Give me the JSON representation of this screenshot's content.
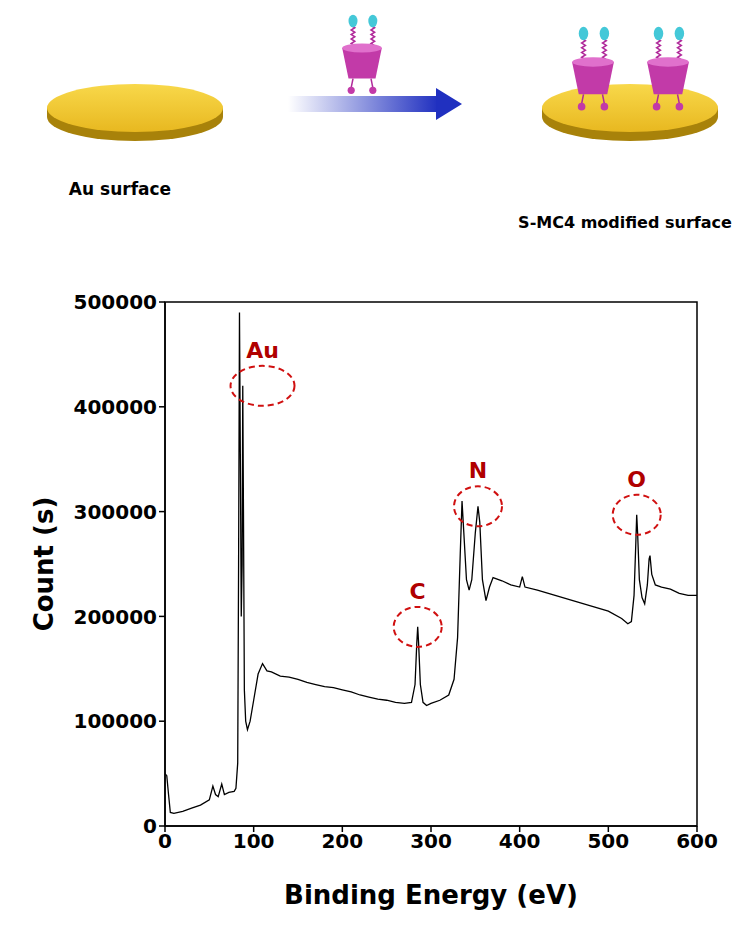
{
  "diagram": {
    "left_label": "Au surface",
    "right_label": "S-MC4 modified surface"
  },
  "chart_data": {
    "type": "line",
    "x_label": "Binding Energy (eV)",
    "y_label": "Count (s)",
    "xlim": [
      0,
      600
    ],
    "xticks": [
      0,
      100,
      200,
      300,
      400,
      500,
      600
    ],
    "ylim": [
      0,
      500000
    ],
    "yticks": [
      0,
      100000,
      200000,
      300000,
      400000,
      500000
    ],
    "grid": false,
    "color": "#000000",
    "x": [
      0,
      2,
      4,
      6,
      10,
      20,
      30,
      40,
      50,
      54,
      57,
      60,
      64,
      67,
      72,
      78,
      80,
      82,
      83,
      84,
      85,
      86,
      87,
      87.7,
      88.5,
      89.5,
      91,
      93,
      96,
      100,
      105,
      110,
      115,
      120,
      130,
      140,
      150,
      160,
      170,
      180,
      190,
      200,
      210,
      220,
      230,
      240,
      250,
      260,
      270,
      278,
      282,
      284,
      285,
      286,
      288,
      291,
      295,
      300,
      310,
      320,
      326,
      330,
      333,
      335,
      337,
      340,
      343,
      346,
      350,
      353,
      355,
      358,
      362,
      366,
      370,
      380,
      390,
      400,
      403,
      406,
      420,
      440,
      460,
      480,
      500,
      515,
      522,
      526,
      529,
      531,
      532,
      533,
      535,
      538,
      541,
      544,
      546,
      547,
      549,
      553,
      560,
      570,
      580,
      590,
      600
    ],
    "values": [
      50000,
      48000,
      30000,
      13000,
      12000,
      14000,
      17000,
      20000,
      25000,
      38000,
      30000,
      28000,
      40000,
      30000,
      32000,
      33000,
      36000,
      60000,
      250000,
      490000,
      350000,
      200000,
      250000,
      420000,
      300000,
      130000,
      100000,
      92000,
      100000,
      120000,
      145000,
      155000,
      148000,
      147000,
      143000,
      142000,
      140000,
      137000,
      135000,
      133000,
      132000,
      130000,
      128000,
      125000,
      123000,
      121000,
      120000,
      118000,
      117000,
      118000,
      135000,
      175000,
      190000,
      175000,
      135000,
      118000,
      115000,
      117000,
      120000,
      125000,
      140000,
      180000,
      260000,
      310000,
      280000,
      235000,
      225000,
      235000,
      280000,
      305000,
      290000,
      235000,
      215000,
      228000,
      237000,
      234000,
      230000,
      228000,
      238000,
      228000,
      225000,
      220000,
      215000,
      210000,
      205000,
      198000,
      193000,
      195000,
      220000,
      270000,
      297000,
      280000,
      235000,
      218000,
      212000,
      230000,
      255000,
      258000,
      240000,
      230000,
      228000,
      226000,
      222000,
      220000,
      220000
    ],
    "annotations": [
      {
        "text": "Au",
        "x": 110,
        "y": 420000
      },
      {
        "text": "C",
        "x": 285,
        "y": 190000
      },
      {
        "text": "N",
        "x": 353,
        "y": 305000
      },
      {
        "text": "O",
        "x": 532,
        "y": 297000
      }
    ]
  }
}
